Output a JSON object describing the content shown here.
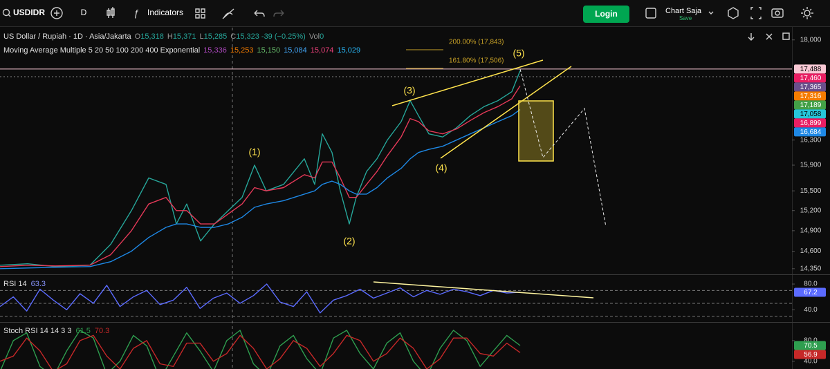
{
  "toolbar": {
    "symbol": "USDIDR",
    "interval": "D",
    "indicators": "Indicators",
    "login": "Login",
    "layout_name": "Chart Saja",
    "save": "Save"
  },
  "chart_data": [
    {
      "type": "line",
      "title": "US Dollar / Rupiah · 1D · Asia/Jakarta",
      "ohlc": [
        [
          "O",
          "15,318"
        ],
        [
          "H",
          "15,371"
        ],
        [
          "L",
          "15,285"
        ],
        [
          "C",
          "15,323 -39 (−0.25%)"
        ],
        [
          "Vol",
          "0"
        ]
      ],
      "ma_title": "Moving Average Multiple 5 20 50 100 200 400 Exponential",
      "ma_values": [
        {
          "label": "15,336",
          "color": "#ab47bc"
        },
        {
          "label": "15,253",
          "color": "#f57c00"
        },
        {
          "label": "15,150",
          "color": "#66bb6a"
        },
        {
          "label": "15,084",
          "color": "#42a5f5"
        },
        {
          "label": "15,074",
          "color": "#ec407a"
        },
        {
          "label": "15,029",
          "color": "#29b6f6"
        }
      ],
      "fib_labels": [
        "200.00% (17,843)",
        "161.80% (17,506)"
      ],
      "annotations": [
        "(1)",
        "(2)",
        "(3)",
        "(4)",
        "(5)"
      ],
      "x": [
        0,
        40,
        80,
        130,
        160,
        190,
        215,
        240,
        255,
        270,
        290,
        310,
        330,
        350,
        368,
        385,
        410,
        440,
        455,
        466,
        480,
        492,
        505,
        515,
        530,
        545,
        560,
        580,
        593,
        605,
        620,
        640,
        660,
        680,
        700,
        720,
        740,
        752
      ],
      "xlim": [
        0,
        1145
      ],
      "series": [
        {
          "color": "#26a69a",
          "values": [
            14400,
            14420,
            14380,
            14400,
            14700,
            15200,
            15700,
            15600,
            15000,
            15300,
            14750,
            15000,
            15200,
            15400,
            15900,
            15500,
            15600,
            16000,
            15600,
            16400,
            16100,
            15500,
            15000,
            15400,
            15800,
            16000,
            16300,
            16600,
            16950,
            16700,
            16400,
            16350,
            16500,
            16700,
            16850,
            16950,
            17100,
            17460
          ]
        },
        {
          "color": "#e53958",
          "values": [
            14380,
            14400,
            14390,
            14400,
            14550,
            14900,
            15300,
            15400,
            15200,
            15200,
            15000,
            15000,
            15150,
            15300,
            15550,
            15500,
            15550,
            15750,
            15700,
            15950,
            15950,
            15700,
            15400,
            15400,
            15600,
            15800,
            16050,
            16350,
            16650,
            16600,
            16450,
            16400,
            16480,
            16620,
            16750,
            16850,
            16980,
            17200
          ]
        },
        {
          "color": "#1e88e5",
          "values": [
            14350,
            14360,
            14370,
            14380,
            14450,
            14600,
            14800,
            14950,
            15000,
            15000,
            14950,
            14950,
            15000,
            15100,
            15250,
            15300,
            15350,
            15450,
            15500,
            15600,
            15650,
            15600,
            15500,
            15450,
            15450,
            15550,
            15700,
            15850,
            16000,
            16100,
            16150,
            16200,
            16300,
            16400,
            16500,
            16600,
            16700,
            16800
          ]
        }
      ],
      "log": true,
      "ylim": [
        14270,
        18220
      ],
      "yticks": [
        {
          "value": 18000,
          "label": "18,000"
        },
        {
          "value": 16300,
          "label": "16,300"
        },
        {
          "value": 15900,
          "label": "15,900"
        },
        {
          "value": 15500,
          "label": "15,500"
        },
        {
          "value": 15200,
          "label": "15,200"
        },
        {
          "value": 14900,
          "label": "14,900"
        },
        {
          "value": 14600,
          "label": "14,600"
        },
        {
          "value": 14350,
          "label": "14,350"
        }
      ],
      "price_labels": [
        {
          "value": 17488,
          "label": "17,488",
          "color": "#f8c8d4",
          "ink": "#000000"
        },
        {
          "value": 17460,
          "label": "17,460",
          "color": "#e91e63",
          "ink": "#ffffff"
        },
        {
          "value": 17365,
          "label": "17,365",
          "color": "#6a4f8c",
          "ink": "#ffffff"
        },
        {
          "value": 17316,
          "label": "17,316",
          "color": "#f57c00",
          "ink": "#ffffff"
        },
        {
          "value": 17189,
          "label": "17,189",
          "color": "#43a047",
          "ink": "#ffffff"
        },
        {
          "value": 17058,
          "label": "17,058",
          "color": "#26c6da",
          "ink": "#000000"
        },
        {
          "value": 16899,
          "label": "16,899",
          "color": "#e91e63",
          "ink": "#ffffff"
        },
        {
          "value": 16684,
          "label": "16,684",
          "color": "#1e88e5",
          "ink": "#ffffff"
        }
      ]
    },
    {
      "type": "line",
      "title": "RSI 14",
      "legend_value": "63.3",
      "color": "#5b6bff",
      "values": [
        45,
        60,
        38,
        72,
        55,
        40,
        65,
        50,
        78,
        45,
        60,
        70,
        48,
        55,
        75,
        42,
        58,
        66,
        50,
        62,
        80,
        52,
        45,
        68,
        35,
        55,
        62,
        72,
        58,
        66,
        74,
        60,
        70,
        64,
        72,
        68,
        62,
        70,
        66,
        67.2
      ],
      "ylim": [
        22,
        94
      ],
      "yticks": [
        {
          "value": 80,
          "label": "80.0"
        },
        {
          "value": 40,
          "label": "40.0"
        }
      ],
      "levels": [
        70,
        50,
        30
      ]
    },
    {
      "type": "line",
      "title": "Stoch RSI 14 14 3 3",
      "legend_values": [
        "61.5",
        "70.3"
      ],
      "series": [
        {
          "color": "#2e9e4f",
          "values": [
            20,
            80,
            95,
            30,
            10,
            60,
            100,
            85,
            15,
            40,
            90,
            70,
            5,
            50,
            95,
            60,
            20,
            80,
            100,
            35,
            10,
            70,
            90,
            45,
            15,
            85,
            100,
            55,
            25,
            75,
            95,
            40,
            10,
            65,
            100,
            80,
            30,
            60,
            90,
            70.5
          ]
        },
        {
          "color": "#c62828",
          "values": [
            40,
            50,
            85,
            60,
            20,
            35,
            80,
            90,
            50,
            25,
            65,
            80,
            35,
            30,
            75,
            75,
            40,
            55,
            90,
            65,
            25,
            45,
            80,
            65,
            30,
            55,
            90,
            80,
            40,
            55,
            85,
            65,
            25,
            45,
            85,
            85,
            55,
            50,
            75,
            56.9
          ]
        }
      ],
      "ylim": [
        25,
        116
      ],
      "yticks": [
        {
          "value": 80,
          "label": "80.0"
        },
        {
          "value": 40,
          "label": "40.0"
        }
      ]
    }
  ]
}
